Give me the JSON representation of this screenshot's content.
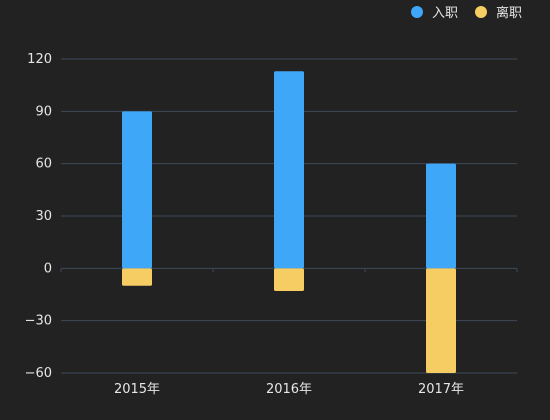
{
  "chart_data": {
    "type": "bar",
    "stacked": true,
    "categories": [
      "2015年",
      "2016年",
      "2017年"
    ],
    "series": [
      {
        "name": "入职",
        "values": [
          90,
          113,
          60
        ],
        "color": "#3fa7f7"
      },
      {
        "name": "离职",
        "values": [
          -10,
          -13,
          -60
        ],
        "color": "#f6cd63"
      }
    ],
    "ylim": [
      -60,
      120
    ],
    "yticks": [
      -60,
      -30,
      0,
      30,
      60,
      90,
      120
    ],
    "grid": true,
    "legend": "top-right",
    "colors": {
      "background": "#222222",
      "grid": "#3e4a5a",
      "text": "#e6e6e6"
    }
  }
}
